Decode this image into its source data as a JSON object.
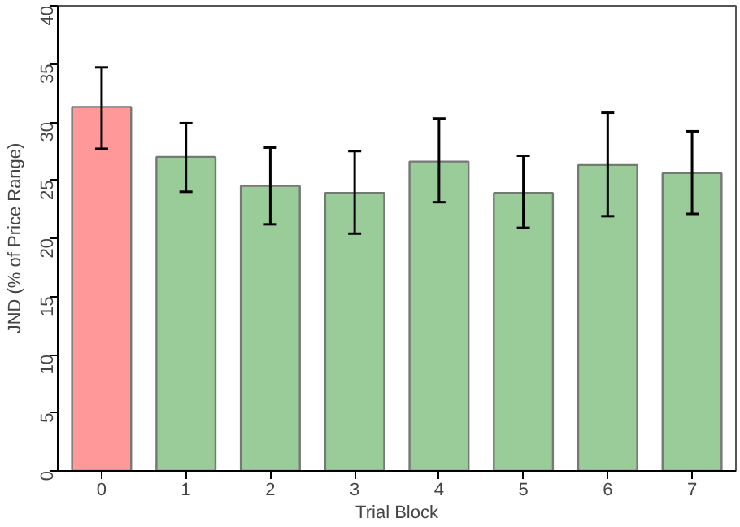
{
  "chart_data": {
    "type": "bar",
    "xlabel": "Trial Block",
    "ylabel": "JND (% of Price Range)",
    "categories": [
      "0",
      "1",
      "2",
      "3",
      "4",
      "5",
      "6",
      "7"
    ],
    "values": [
      31.3,
      27.0,
      24.5,
      23.9,
      26.6,
      23.9,
      26.3,
      25.6
    ],
    "colors": [
      "#ff9999",
      "#99cc99",
      "#99cc99",
      "#99cc99",
      "#99cc99",
      "#99cc99",
      "#99cc99",
      "#99cc99"
    ],
    "errors": [
      [
        27.7,
        34.7
      ],
      [
        24.0,
        29.9
      ],
      [
        21.2,
        27.8
      ],
      [
        20.4,
        27.5
      ],
      [
        23.1,
        30.3
      ],
      [
        20.9,
        27.1
      ],
      [
        21.9,
        30.8
      ],
      [
        22.1,
        29.2
      ]
    ],
    "ylim": [
      0,
      40
    ],
    "yticks": [
      0,
      5,
      10,
      15,
      20,
      25,
      30,
      35,
      40
    ],
    "grid": false
  }
}
